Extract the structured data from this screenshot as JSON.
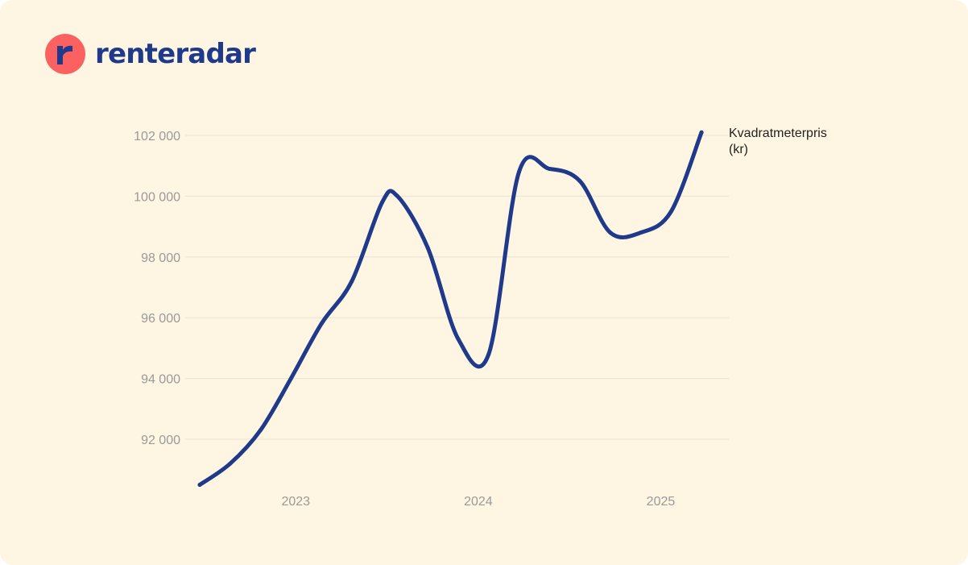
{
  "brand": {
    "name": "renteradar",
    "color": "#1f3a8a",
    "mark_color": "#fb6161"
  },
  "chart_data": {
    "type": "line",
    "series_label": [
      "Kvadratmeterpris",
      "(kr)"
    ],
    "line_color": "#1f3a8a",
    "x": [
      "2022-07",
      "2022-09",
      "2022-11",
      "2023-01",
      "2023-03",
      "2023-05",
      "2023-07",
      "2023-08",
      "2023-10",
      "2023-12",
      "2024-02",
      "2024-04",
      "2024-06",
      "2024-08",
      "2024-10",
      "2024-12",
      "2025-02",
      "2025-04"
    ],
    "values": [
      90500,
      91200,
      92300,
      94000,
      95800,
      97200,
      99800,
      100000,
      98300,
      95300,
      94800,
      100800,
      100900,
      100500,
      98800,
      98800,
      99500,
      102100
    ],
    "y_ticks": [
      92000,
      94000,
      96000,
      98000,
      100000,
      102000
    ],
    "y_tick_labels": [
      "92 000",
      "94 000",
      "96 000",
      "98 000",
      "100 000",
      "102 000"
    ],
    "x_ticks": [
      "2023-01",
      "2024-01",
      "2025-01"
    ],
    "x_tick_labels": [
      "2023",
      "2024",
      "2025"
    ],
    "xlim": [
      "2022-07",
      "2025-05"
    ],
    "grid": true,
    "legend": "end-of-line label"
  }
}
